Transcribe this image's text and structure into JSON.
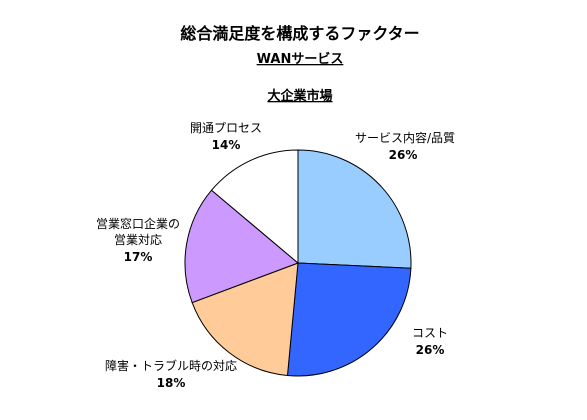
{
  "chart_data": {
    "type": "pie",
    "title": "総合満足度を構成するファクター",
    "subtitle_1": "WANサービス",
    "subtitle_2": "大企業市場",
    "slices": [
      {
        "name": "サービス内容/品質",
        "value": 26,
        "value_label": "26%",
        "color": "#99CCFF"
      },
      {
        "name": "コスト",
        "value": 26,
        "value_label": "26%",
        "color": "#3366FF"
      },
      {
        "name": "障害・トラブル時の対応",
        "value": 18,
        "value_label": "18%",
        "color": "#FFCC99"
      },
      {
        "name": "営業窓口企業の営業対応",
        "value": 17,
        "value_label": "17%",
        "color": "#CC99FF"
      },
      {
        "name": "開通プロセス",
        "value": 14,
        "value_label": "14%",
        "color": "#FFFFFF"
      }
    ],
    "start": "12 o'clock",
    "direction": "clockwise"
  }
}
